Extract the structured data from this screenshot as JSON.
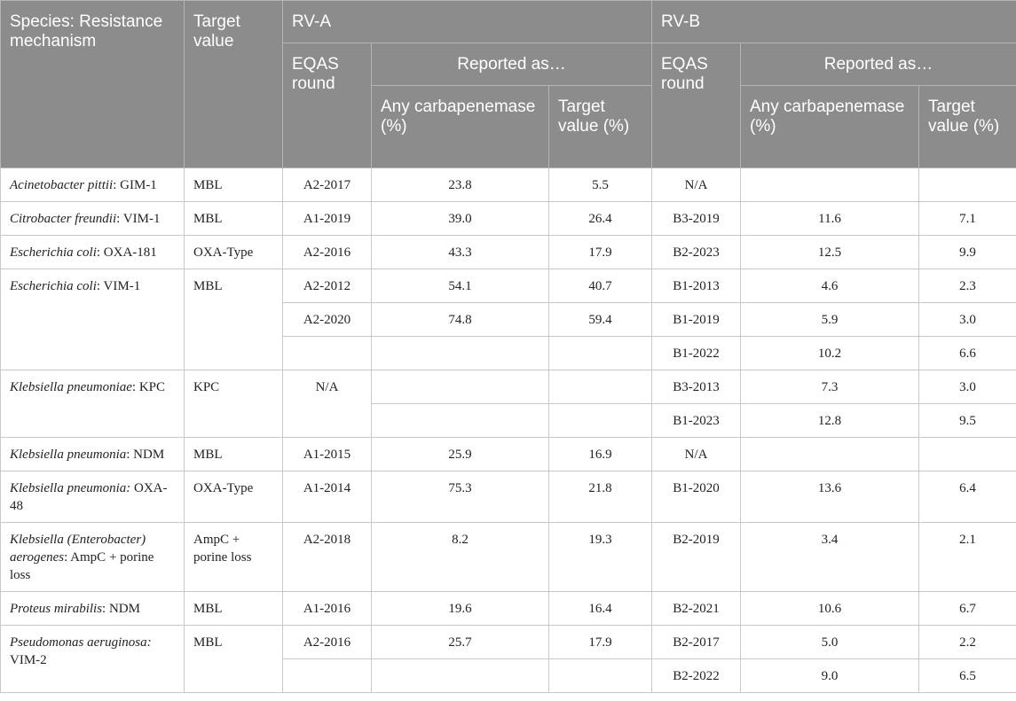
{
  "header": {
    "species_col": "Species: Resistance mechanism",
    "target_col": "Target value",
    "rv_a": "RV-A",
    "rv_b": "RV-B",
    "reported_as": "Reported as…",
    "eqas_round": "EQAS round",
    "any_carbapenemase": "Any carbapenemase (%)",
    "target_value_pct": "Target value (%)"
  },
  "rows": [
    {
      "species": "Acinetobacter pittii",
      "mech": ": GIM-1",
      "target": "MBL",
      "a_round": "A2-2017",
      "a_any": "23.8",
      "a_tv": "5.5",
      "b_round": "N/A",
      "b_any": "",
      "b_tv": ""
    },
    {
      "species": "Citrobacter freundii",
      "mech": ": VIM-1",
      "target": "MBL",
      "a_round": "A1-2019",
      "a_any": "39.0",
      "a_tv": "26.4",
      "b_round": "B3-2019",
      "b_any": "11.6",
      "b_tv": "7.1"
    },
    {
      "species": "Escherichia coli",
      "mech": ": OXA-181",
      "target": "OXA-Type",
      "a_round": "A2-2016",
      "a_any": "43.3",
      "a_tv": "17.9",
      "b_round": "B2-2023",
      "b_any": "12.5",
      "b_tv": "9.9"
    },
    {
      "species": "Escherichia coli",
      "mech": ": VIM-1",
      "target": "MBL",
      "a_round": "A2-2012",
      "a_any": "54.1",
      "a_tv": "40.7",
      "b_round": "B1-2013",
      "b_any": "4.6",
      "b_tv": "2.3"
    },
    {
      "a_round": "A2-2020",
      "a_any": "74.8",
      "a_tv": "59.4",
      "b_round": "B1-2019",
      "b_any": "5.9",
      "b_tv": "3.0"
    },
    {
      "a_round": "",
      "a_any": "",
      "a_tv": "",
      "b_round": "B1-2022",
      "b_any": "10.2",
      "b_tv": "6.6"
    },
    {
      "species": "Klebsiella pneumoniae",
      "mech": ": KPC",
      "target": "KPC",
      "a_round": "N/A",
      "a_any": "",
      "a_tv": "",
      "b_round": "B3-2013",
      "b_any": "7.3",
      "b_tv": "3.0"
    },
    {
      "a_any": "",
      "a_tv": "",
      "b_round": "B1-2023",
      "b_any": "12.8",
      "b_tv": "9.5"
    },
    {
      "species": "Klebsiella pneumonia",
      "mech": ": NDM",
      "target": "MBL",
      "a_round": "A1-2015",
      "a_any": "25.9",
      "a_tv": "16.9",
      "b_round": "N/A",
      "b_any": "",
      "b_tv": ""
    },
    {
      "species": "Klebsiella pneumonia:",
      "mech": " OXA-48",
      "target": "OXA-Type",
      "a_round": "A1-2014",
      "a_any": "75.3",
      "a_tv": "21.8",
      "b_round": "B1-2020",
      "b_any": "13.6",
      "b_tv": "6.4"
    },
    {
      "species": "Klebsiella (Enterobacter) aerogenes",
      "mech": ": AmpC + porine loss",
      "target": "AmpC + porine loss",
      "a_round": "A2-2018",
      "a_any": "8.2",
      "a_tv": "19.3",
      "b_round": "B2-2019",
      "b_any": "3.4",
      "b_tv": "2.1"
    },
    {
      "species": "Proteus mirabilis",
      "mech": ": NDM",
      "target": "MBL",
      "a_round": "A1-2016",
      "a_any": "19.6",
      "a_tv": "16.4",
      "b_round": "B2-2021",
      "b_any": "10.6",
      "b_tv": "6.7"
    },
    {
      "species": "Pseudomonas aeruginosa:",
      "mech": " VIM-2",
      "target": "MBL",
      "a_round": "A2-2016",
      "a_any": "25.7",
      "a_tv": "17.9",
      "b_round": "B2-2017",
      "b_any": "5.0",
      "b_tv": "2.2"
    },
    {
      "a_round": "",
      "a_any": "",
      "a_tv": "",
      "b_round": "B2-2022",
      "b_any": "9.0",
      "b_tv": "6.5"
    }
  ]
}
